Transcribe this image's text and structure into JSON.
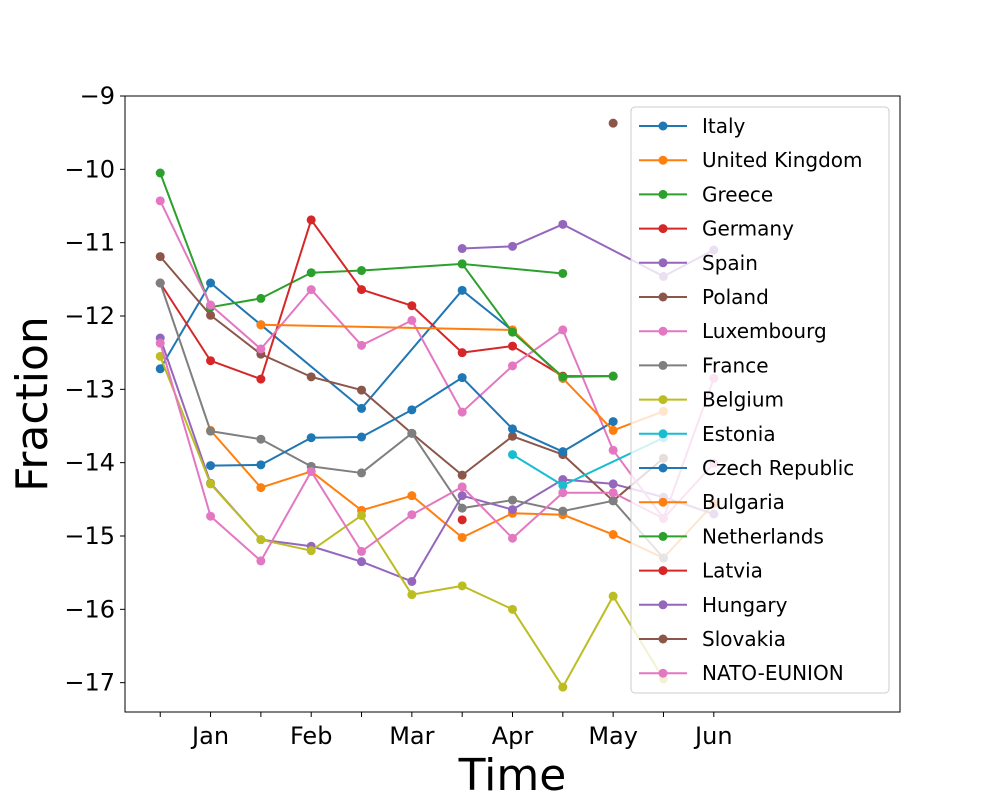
{
  "chart_data": {
    "type": "line",
    "title": "",
    "xlabel": "Time",
    "ylabel": "Fraction",
    "ylim": [
      -17.4,
      -9.0
    ],
    "x_ticks": [
      0,
      1,
      2,
      3,
      4,
      5,
      6,
      7,
      8,
      9,
      10,
      11
    ],
    "x_tick_labels": [
      "",
      "Jan",
      "",
      "Feb",
      "",
      "Mar",
      "",
      "Apr",
      "",
      "May",
      "",
      "Jun"
    ],
    "y_ticks": [
      -17,
      -16,
      -15,
      -14,
      -13,
      -12,
      -11,
      -10,
      -9
    ],
    "y_tick_labels": [
      "−17",
      "−16",
      "−15",
      "−14",
      "−13",
      "−12",
      "−11",
      "−10",
      "−9"
    ],
    "grid": false,
    "legend_position": "top-right",
    "series": [
      {
        "name": "Italy",
        "color": "#1f77b4",
        "points": [
          [
            0,
            -12.72
          ],
          [
            1,
            -11.55
          ],
          [
            2,
            -12.12
          ],
          [
            4,
            -13.26
          ],
          [
            6,
            -11.65
          ],
          [
            7,
            -12.2
          ],
          [
            8,
            -12.85
          ]
        ]
      },
      {
        "name": "United Kingdom",
        "color": "#ff7f0e",
        "points": [
          [
            1,
            -13.56
          ],
          [
            2,
            -14.34
          ],
          [
            3,
            -14.12
          ],
          [
            4,
            -14.65
          ],
          [
            5,
            -14.45
          ],
          [
            6,
            -15.02
          ],
          [
            7,
            -14.69
          ],
          [
            8,
            -14.71
          ],
          [
            9,
            -14.98
          ],
          [
            10,
            -15.3
          ],
          [
            11,
            -14.56
          ]
        ]
      },
      {
        "name": "Greece",
        "color": "#2ca02c",
        "points": [
          [
            0,
            -10.05
          ],
          [
            1,
            -11.88
          ],
          [
            2,
            -11.76
          ],
          [
            3,
            -11.41
          ],
          [
            4,
            -11.38
          ],
          [
            6,
            -11.29
          ],
          [
            8,
            -11.42
          ]
        ]
      },
      {
        "name": "Germany",
        "color": "#d62728",
        "points": [
          [
            0,
            -11.55
          ],
          [
            1,
            -12.61
          ],
          [
            2,
            -12.86
          ],
          [
            3,
            -10.69
          ],
          [
            4,
            -11.64
          ],
          [
            5,
            -11.86
          ],
          [
            6,
            -12.5
          ],
          [
            7,
            -12.41
          ],
          [
            8,
            -12.82
          ],
          [
            9,
            -12.82
          ]
        ]
      },
      {
        "name": "Spain",
        "color": "#9467bd",
        "points": [
          [
            0,
            -12.3
          ],
          [
            1,
            -14.28
          ],
          [
            2,
            -15.05
          ],
          [
            3,
            -15.14
          ],
          [
            4,
            -15.35
          ],
          [
            5,
            -15.62
          ],
          [
            6,
            -14.45
          ],
          [
            7,
            -14.64
          ],
          [
            8,
            -14.23
          ],
          [
            9,
            -14.29
          ],
          [
            10,
            -14.47
          ],
          [
            11,
            -14.7
          ]
        ]
      },
      {
        "name": "Poland",
        "color": "#8c564b",
        "points": [
          [
            0,
            -11.19
          ],
          [
            1,
            -11.99
          ],
          [
            2,
            -12.52
          ],
          [
            3,
            -12.83
          ],
          [
            4,
            -13.01
          ],
          [
            5,
            -13.6
          ],
          [
            6,
            -14.17
          ],
          [
            7,
            -13.64
          ],
          [
            8,
            -13.89
          ],
          [
            9,
            -14.52
          ],
          [
            10,
            -13.94
          ]
        ]
      },
      {
        "name": "Luxembourg",
        "color": "#e377c2",
        "points": [
          [
            0,
            -10.43
          ],
          [
            1,
            -11.85
          ],
          [
            2,
            -12.45
          ],
          [
            3,
            -11.64
          ],
          [
            4,
            -12.4
          ],
          [
            5,
            -12.06
          ],
          [
            6,
            -13.31
          ],
          [
            7,
            -12.68
          ],
          [
            8,
            -12.19
          ],
          [
            9,
            -13.83
          ],
          [
            10,
            -14.76
          ],
          [
            11,
            -12.85
          ]
        ]
      },
      {
        "name": "France",
        "color": "#7f7f7f",
        "points": [
          [
            0,
            -11.55
          ],
          [
            1,
            -13.57
          ],
          [
            2,
            -13.68
          ],
          [
            3,
            -14.05
          ],
          [
            4,
            -14.14
          ],
          [
            5,
            -13.6
          ],
          [
            6,
            -14.62
          ],
          [
            7,
            -14.51
          ],
          [
            8,
            -14.66
          ],
          [
            9,
            -14.52
          ],
          [
            10,
            -15.3
          ]
        ]
      },
      {
        "name": "Belgium",
        "color": "#bcbd22",
        "points": [
          [
            0,
            -12.55
          ],
          [
            1,
            -14.29
          ],
          [
            2,
            -15.05
          ],
          [
            3,
            -15.2
          ],
          [
            4,
            -14.72
          ],
          [
            5,
            -15.8
          ],
          [
            6,
            -15.68
          ],
          [
            7,
            -16.0
          ],
          [
            8,
            -17.06
          ],
          [
            9,
            -15.82
          ],
          [
            10,
            -16.95
          ]
        ]
      },
      {
        "name": "Estonia",
        "color": "#17becf",
        "points": [
          [
            7,
            -13.89
          ],
          [
            8,
            -14.31
          ],
          [
            10,
            -13.66
          ]
        ]
      },
      {
        "name": "Czech Republic",
        "color": "#1f77b4",
        "points": [
          [
            1,
            -14.04
          ],
          [
            2,
            -14.03
          ],
          [
            3,
            -13.66
          ],
          [
            4,
            -13.65
          ],
          [
            5,
            -13.28
          ],
          [
            6,
            -12.84
          ],
          [
            7,
            -13.54
          ],
          [
            8,
            -13.85
          ],
          [
            9,
            -13.44
          ]
        ]
      },
      {
        "name": "Bulgaria",
        "color": "#ff7f0e",
        "points": [
          [
            2,
            -12.12
          ],
          [
            7,
            -12.19
          ],
          [
            8,
            -12.85
          ],
          [
            9,
            -13.56
          ],
          [
            10,
            -13.3
          ]
        ]
      },
      {
        "name": "Netherlands",
        "color": "#2ca02c",
        "points": [
          [
            6,
            -11.29
          ],
          [
            7,
            -12.22
          ],
          [
            8,
            -12.83
          ],
          [
            9,
            -12.82
          ]
        ]
      },
      {
        "name": "Latvia",
        "color": "#d62728",
        "points": [
          [
            6,
            -14.78
          ]
        ]
      },
      {
        "name": "Hungary",
        "color": "#9467bd",
        "points": [
          [
            6,
            -11.08
          ],
          [
            7,
            -11.05
          ],
          [
            8,
            -10.75
          ],
          [
            10,
            -11.46
          ],
          [
            11,
            -11.1
          ]
        ]
      },
      {
        "name": "Slovakia",
        "color": "#8c564b",
        "points": [
          [
            9,
            -9.37
          ]
        ]
      },
      {
        "name": "NATO-EUNION",
        "color": "#e377c2",
        "points": [
          [
            0,
            -12.37
          ],
          [
            1,
            -14.73
          ],
          [
            2,
            -15.34
          ],
          [
            3,
            -14.12
          ],
          [
            4,
            -15.21
          ],
          [
            5,
            -14.71
          ],
          [
            6,
            -14.33
          ],
          [
            7,
            -15.03
          ],
          [
            8,
            -14.41
          ],
          [
            9,
            -14.41
          ],
          [
            10,
            -14.76
          ],
          [
            11,
            -14.01
          ]
        ]
      }
    ]
  }
}
